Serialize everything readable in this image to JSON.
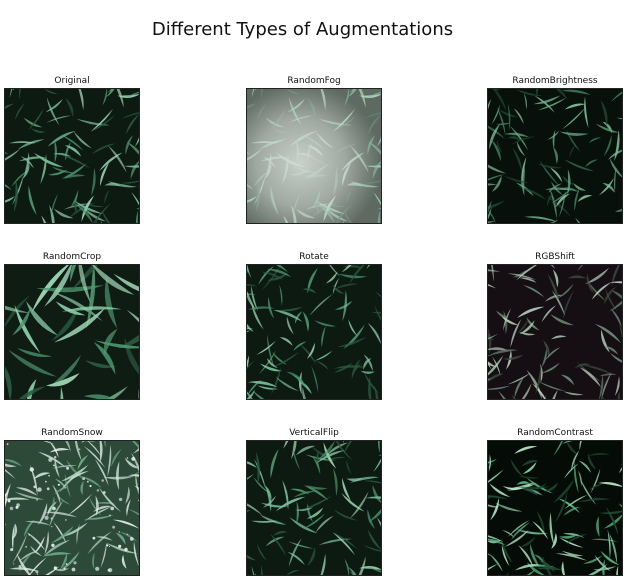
{
  "figure": {
    "title": "Different Types of Augmentations"
  },
  "panels": [
    {
      "label": "Original",
      "effect": "none"
    },
    {
      "label": "RandomFog",
      "effect": "fog"
    },
    {
      "label": "RandomBrightness",
      "effect": "dark"
    },
    {
      "label": "RandomCrop",
      "effect": "crop"
    },
    {
      "label": "Rotate",
      "effect": "rotate"
    },
    {
      "label": "RGBShift",
      "effect": "rgbshift"
    },
    {
      "label": "RandomSnow",
      "effect": "snow"
    },
    {
      "label": "VerticalFlip",
      "effect": "flip"
    },
    {
      "label": "RandomContrast",
      "effect": "contrast"
    }
  ],
  "palette": {
    "background": "#0d1a12",
    "leaf_light": "#9fd6b4",
    "leaf_mid": "#4f9a72",
    "leaf_dark": "#2a5a40",
    "snow": "#e8f2ec",
    "fog": "#d8dfd9"
  }
}
